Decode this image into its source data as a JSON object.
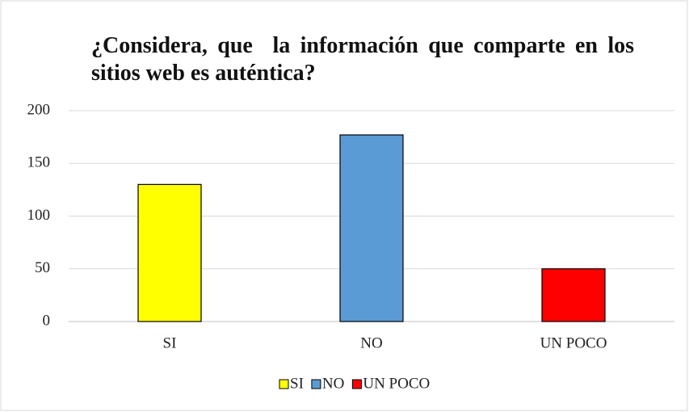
{
  "chart_data": {
    "type": "bar",
    "title": "¿Considera, que  la información que comparte en los sitios web es auténtica?",
    "categories": [
      "SI",
      "NO",
      "UN POCO"
    ],
    "values": [
      130,
      177,
      50
    ],
    "colors": [
      "#ffff00",
      "#5b9bd5",
      "#ff0000"
    ],
    "ylim": [
      0,
      200
    ],
    "yticks": [
      0,
      50,
      100,
      150,
      200
    ],
    "grid": true,
    "legend": "bottom"
  }
}
